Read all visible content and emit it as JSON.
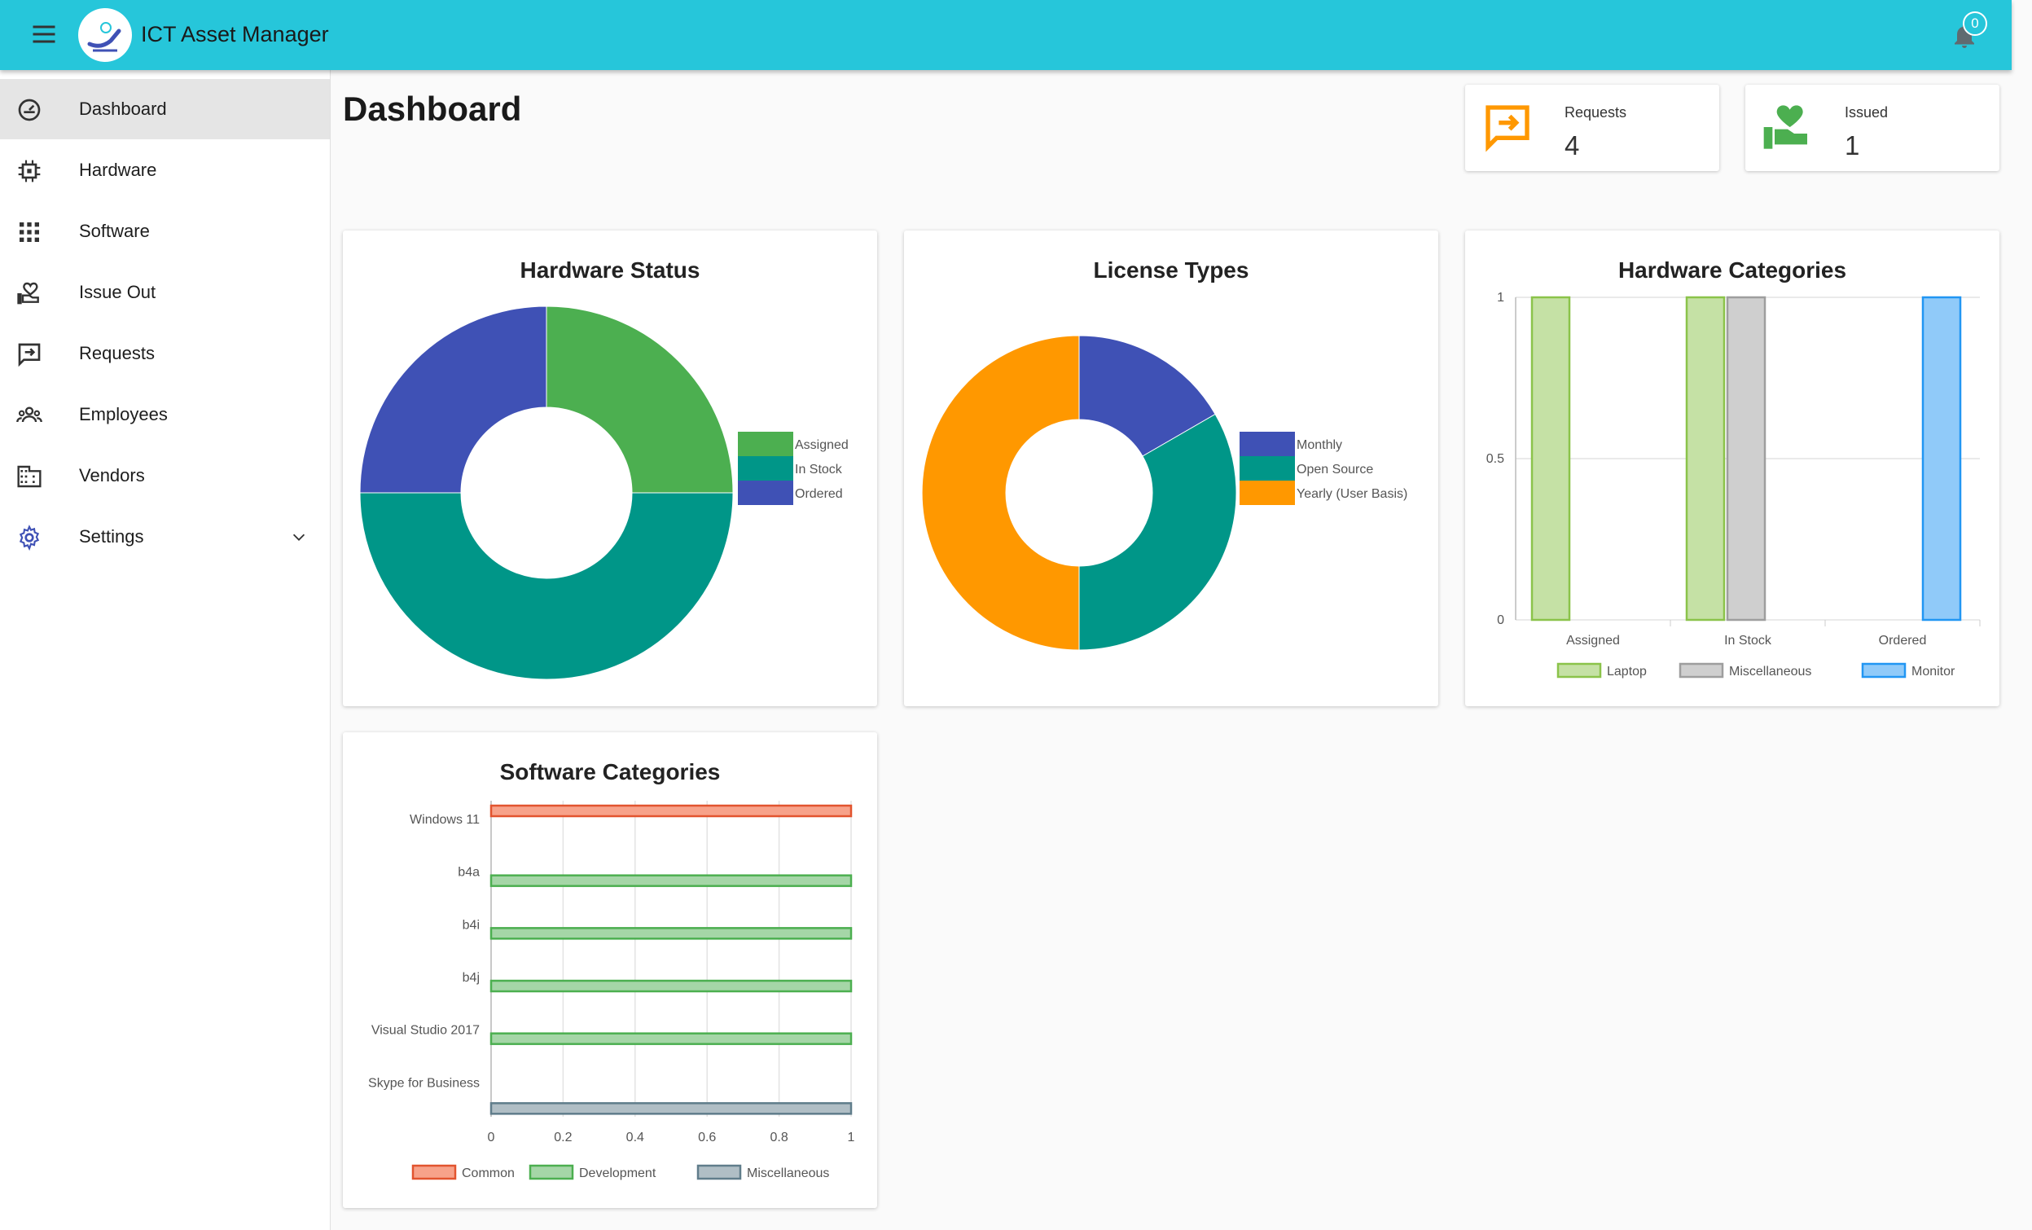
{
  "app": {
    "title": "ICT Asset Manager",
    "notification_count": "0"
  },
  "sidebar": {
    "items": [
      {
        "label": "Dashboard"
      },
      {
        "label": "Hardware"
      },
      {
        "label": "Software"
      },
      {
        "label": "Issue Out"
      },
      {
        "label": "Requests"
      },
      {
        "label": "Employees"
      },
      {
        "label": "Vendors"
      },
      {
        "label": "Settings"
      }
    ],
    "active": "Dashboard"
  },
  "page": {
    "title": "Dashboard"
  },
  "stats": {
    "requests": {
      "label": "Requests",
      "value": "4"
    },
    "issued": {
      "label": "Issued",
      "value": "1"
    }
  },
  "colors": {
    "accent": "#26c6da",
    "green": "#4caf50",
    "teal": "#009688",
    "indigo": "#3f51b5",
    "orange": "#ff9800",
    "laptop": "#c5e1a5",
    "laptop_border": "#8bc34a",
    "misc": "#cfcfcf",
    "misc_border": "#9e9e9e",
    "monitor": "#90caf9",
    "monitor_border": "#2196f3",
    "common": "#f7a28a",
    "common_border": "#e2542f",
    "development": "#a5d6a7",
    "development_border": "#4caf50",
    "software_misc": "#b0bec5",
    "software_misc_border": "#607d8b"
  },
  "chart_data": [
    {
      "type": "pie",
      "title": "Hardware Status",
      "categories": [
        "Assigned",
        "In Stock",
        "Ordered"
      ],
      "values": [
        1,
        2,
        1
      ],
      "colors": [
        "#4caf50",
        "#009688",
        "#3f51b5"
      ],
      "legend": "right"
    },
    {
      "type": "pie",
      "title": "License Types",
      "categories": [
        "Monthly",
        "Open Source",
        "Yearly (User Basis)"
      ],
      "values": [
        1,
        2,
        3
      ],
      "colors": [
        "#3f51b5",
        "#009688",
        "#ff9800"
      ],
      "legend": "right"
    },
    {
      "type": "bar",
      "title": "Hardware Categories",
      "categories": [
        "Assigned",
        "In Stock",
        "Ordered"
      ],
      "series": [
        {
          "name": "Laptop",
          "values": [
            1,
            1,
            0
          ]
        },
        {
          "name": "Miscellaneous",
          "values": [
            0,
            1,
            0
          ]
        },
        {
          "name": "Monitor",
          "values": [
            0,
            0,
            1
          ]
        }
      ],
      "ylim": [
        0,
        1
      ],
      "yticks": [
        "0",
        "0.5",
        "1"
      ],
      "grid": true,
      "legend": "bottom"
    },
    {
      "type": "bar",
      "orientation": "horizontal",
      "title": "Software Categories",
      "categories": [
        "Windows 11",
        "b4a",
        "b4i",
        "b4j",
        "Visual Studio 2017",
        "Skype for Business"
      ],
      "series": [
        {
          "name": "Common",
          "values": [
            1,
            0,
            0,
            0,
            0,
            0
          ]
        },
        {
          "name": "Development",
          "values": [
            0,
            1,
            1,
            1,
            1,
            0
          ]
        },
        {
          "name": "Miscellaneous",
          "values": [
            0,
            0,
            0,
            0,
            0,
            1
          ]
        }
      ],
      "xlim": [
        0,
        1
      ],
      "xticks": [
        "0",
        "0.2",
        "0.4",
        "0.6",
        "0.8",
        "1"
      ],
      "grid": true,
      "legend": "bottom"
    }
  ]
}
